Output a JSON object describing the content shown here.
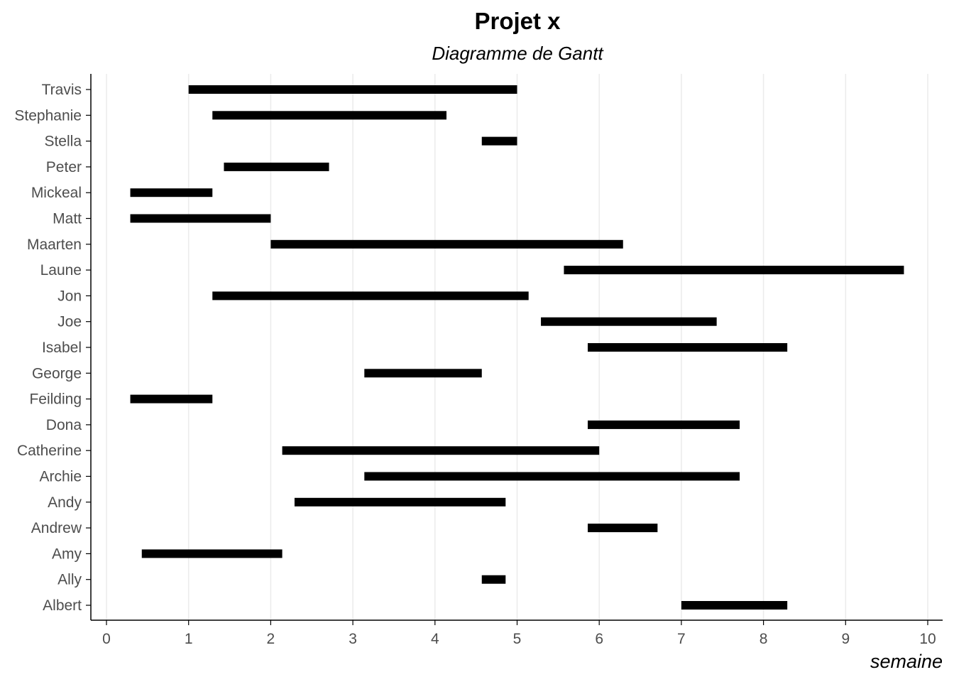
{
  "chart_data": {
    "type": "gantt",
    "title": "Projet x",
    "subtitle": "Diagramme de Gantt",
    "xlabel": "semaine",
    "ylabel": "",
    "xlim": [
      0,
      10
    ],
    "x_ticks": [
      "0",
      "1",
      "2",
      "3",
      "4",
      "5",
      "6",
      "7",
      "8",
      "9",
      "10"
    ],
    "grid": "vertical major gridlines",
    "bar_color": "#000000",
    "grid_color": "#ebebeb",
    "axis_color": "#000000",
    "tick_label_color": "#4d4d4d",
    "tasks": [
      {
        "name": "Travis",
        "start": 1.0,
        "end": 5.0
      },
      {
        "name": "Stephanie",
        "start": 1.29,
        "end": 4.14
      },
      {
        "name": "Stella",
        "start": 4.57,
        "end": 5.0
      },
      {
        "name": "Peter",
        "start": 1.43,
        "end": 2.71
      },
      {
        "name": "Mickeal",
        "start": 0.29,
        "end": 1.29
      },
      {
        "name": "Matt",
        "start": 0.29,
        "end": 2.0
      },
      {
        "name": "Maarten",
        "start": 2.0,
        "end": 6.29
      },
      {
        "name": "Laune",
        "start": 5.57,
        "end": 9.71
      },
      {
        "name": "Jon",
        "start": 1.29,
        "end": 5.14
      },
      {
        "name": "Joe",
        "start": 5.29,
        "end": 7.43
      },
      {
        "name": "Isabel",
        "start": 5.86,
        "end": 8.29
      },
      {
        "name": "George",
        "start": 3.14,
        "end": 4.57
      },
      {
        "name": "Feilding",
        "start": 0.29,
        "end": 1.29
      },
      {
        "name": "Dona",
        "start": 5.86,
        "end": 7.71
      },
      {
        "name": "Catherine",
        "start": 2.14,
        "end": 6.0
      },
      {
        "name": "Archie",
        "start": 3.14,
        "end": 7.71
      },
      {
        "name": "Andy",
        "start": 2.29,
        "end": 4.86
      },
      {
        "name": "Andrew",
        "start": 5.86,
        "end": 6.71
      },
      {
        "name": "Amy",
        "start": 0.43,
        "end": 2.14
      },
      {
        "name": "Ally",
        "start": 4.57,
        "end": 4.86
      },
      {
        "name": "Albert",
        "start": 7.0,
        "end": 8.29
      }
    ]
  }
}
